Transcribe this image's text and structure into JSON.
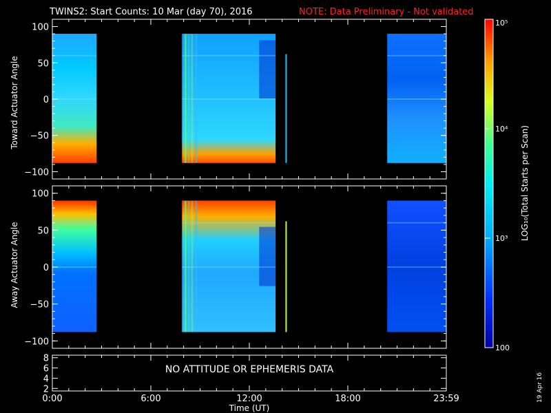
{
  "header": {
    "title": "TWINS2: Start Counts: 10 Mar (day  70), 2016",
    "note": "NOTE: Data Preliminary - Not validated",
    "note_color": "#ff2020"
  },
  "footer_date": "19 Apr 16",
  "colorbar": {
    "label": "LOG₁₀(Total Starts per Scan)",
    "ticks": [
      "10⁵",
      "10⁴",
      "10³",
      "100"
    ],
    "scale": "log",
    "range": [
      100,
      100000
    ],
    "colormap": "rainbow (blue-cyan-green-yellow-red)"
  },
  "chart_data": [
    {
      "type": "heatmap",
      "ylabel": "Toward Actuator Angle",
      "xlim_hours": [
        0,
        24
      ],
      "ylim": [
        -110,
        110
      ],
      "y_ticks": [
        "100",
        "50",
        "0",
        "−50",
        "−100"
      ],
      "data_y_range": [
        -88,
        90
      ],
      "coverage_hours": [
        [
          0.0,
          2.7
        ],
        [
          7.9,
          13.6
        ],
        [
          20.4,
          24.0
        ]
      ],
      "spike_hours": [
        14.2
      ],
      "features": "counts peak (red, ~10^5) near -88 deg early in each data interval; mid-latitudes ~10^3 to 10^4"
    },
    {
      "type": "heatmap",
      "ylabel": "Away Actuator Angle",
      "xlim_hours": [
        0,
        24
      ],
      "ylim": [
        -110,
        110
      ],
      "y_ticks": [
        "100",
        "50",
        "0",
        "−50",
        "−100"
      ],
      "data_y_range": [
        -88,
        90
      ],
      "coverage_hours": [
        [
          0.0,
          2.7
        ],
        [
          7.9,
          13.6
        ],
        [
          20.4,
          24.0
        ]
      ],
      "spike_hours": [
        14.2
      ],
      "features": "counts peak (red) near +90 deg; lower latitudes mostly ~10^3 (blue)"
    },
    {
      "type": "line",
      "ylabel": "",
      "ylim": [
        1.5,
        8.5
      ],
      "y_ticks": [
        "8",
        "6",
        "4",
        "2"
      ],
      "message": "NO ATTITUDE OR EPHEMERIS DATA"
    }
  ],
  "x_axis": {
    "label": "Time (UT)",
    "ticks": [
      "0:00",
      "6:00",
      "12:00",
      "18:00",
      "23:59"
    ]
  }
}
